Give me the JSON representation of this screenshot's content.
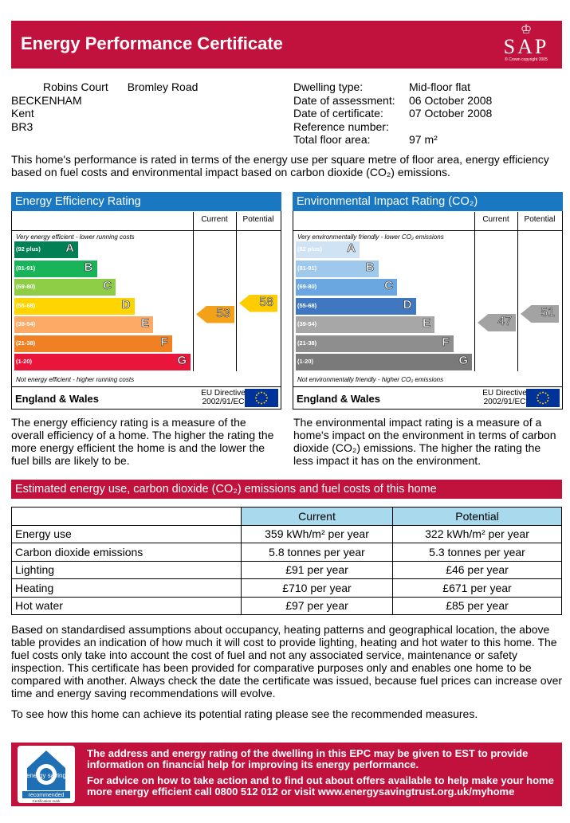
{
  "header": {
    "title": "Energy Performance Certificate",
    "logo_text": "SAP",
    "logo_copyright": "© Crown copyright 2005"
  },
  "address": {
    "line1a": "Robins Court",
    "line1b": "Bromley Road",
    "line2": "BECKENHAM",
    "line3": "Kent",
    "line4": "BR3"
  },
  "details": [
    {
      "label": "Dwelling type:",
      "value": "Mid-floor flat"
    },
    {
      "label": "Date of assessment:",
      "value": "06 October 2008"
    },
    {
      "label": "Date of certificate:",
      "value": "07 October 2008"
    },
    {
      "label": "Reference number:",
      "value": ""
    },
    {
      "label": "Total floor area:",
      "value": "97 m²"
    }
  ],
  "intro": "This home's performance is rated in terms of the energy use per square metre of floor area, energy efficiency based on fuel costs and environmental impact based on carbon dioxide (CO₂) emissions.",
  "energy_rating": {
    "title": "Energy Efficiency Rating",
    "col_current": "Current",
    "col_potential": "Potential",
    "top_text": "Very energy efficient - lower running costs",
    "bottom_text": "Not energy efficient - higher running costs",
    "bands": [
      {
        "range": "(92 plus)",
        "letter": "A",
        "color": "#008054"
      },
      {
        "range": "(81-91)",
        "letter": "B",
        "color": "#19b459"
      },
      {
        "range": "(69-80)",
        "letter": "C",
        "color": "#8dce46"
      },
      {
        "range": "(55-68)",
        "letter": "D",
        "color": "#ffd500"
      },
      {
        "range": "(39-54)",
        "letter": "E",
        "color": "#fcaa65"
      },
      {
        "range": "(21-38)",
        "letter": "F",
        "color": "#ef8023"
      },
      {
        "range": "(1-20)",
        "letter": "G",
        "color": "#e9153b"
      }
    ],
    "current": "53",
    "current_color": "#f4a11a",
    "potential": "58",
    "potential_color": "#ffcc00",
    "footer_region": "England & Wales",
    "footer_directive": "EU Directive 2002/91/EC"
  },
  "env_rating": {
    "title": "Environmental Impact Rating (CO₂)",
    "col_current": "Current",
    "col_potential": "Potential",
    "top_text": "Very environmentally friendly - lower CO₂ emissions",
    "bottom_text": "Not environmentally friendly - higher CO₂ emissions",
    "bands": [
      {
        "range": "(92 plus)",
        "letter": "A",
        "color": "#cfe3f5"
      },
      {
        "range": "(81-91)",
        "letter": "B",
        "color": "#9ec8ec"
      },
      {
        "range": "(69-80)",
        "letter": "C",
        "color": "#6aa6df"
      },
      {
        "range": "(55-68)",
        "letter": "D",
        "color": "#3f78c1"
      },
      {
        "range": "(39-54)",
        "letter": "E",
        "color": "#a7a7a7"
      },
      {
        "range": "(21-38)",
        "letter": "F",
        "color": "#8e8e8e"
      },
      {
        "range": "(1-20)",
        "letter": "G",
        "color": "#7a7a7a"
      }
    ],
    "current": "47",
    "current_color": "#a3a3a3",
    "potential": "51",
    "potential_color": "#a3a3a3",
    "footer_region": "England & Wales",
    "footer_directive": "EU Directive 2002/91/EC"
  },
  "energy_desc": "The energy efficiency rating is a measure of the overall efficiency of a home. The higher the rating the more energy efficient the home is and the lower the fuel bills are likely to be.",
  "env_desc": "The environmental impact rating is a measure of a home's impact on the environment in terms of carbon dioxide (CO₂) emissions. The higher the rating the less impact it has on the environment.",
  "estimate": {
    "title": "Estimated energy use, carbon dioxide (CO₂) emissions and fuel costs of this home",
    "col_current": "Current",
    "col_potential": "Potential",
    "rows": [
      {
        "label": "Energy use",
        "current": "359 kWh/m² per year",
        "potential": "322 kWh/m² per year"
      },
      {
        "label": "Carbon dioxide emissions",
        "current": "5.8 tonnes per year",
        "potential": "5.3 tonnes per year"
      },
      {
        "label": "Lighting",
        "current": "£91 per year",
        "potential": "£46 per year"
      },
      {
        "label": "Heating",
        "current": "£710 per year",
        "potential": "£671 per year"
      },
      {
        "label": "Hot water",
        "current": "£97 per year",
        "potential": "£85 per year"
      }
    ]
  },
  "paragraph": "Based on standardised assumptions about occupancy, heating patterns and geographical location, the above table provides an indication of how much it will cost to provide lighting, heating and hot water to this home. The fuel costs only take into account the cost of fuel and not any associated service, maintenance or safety inspection. This certificate has been provided for comparative purposes only and enables one home to be compared with another. Always check the date the certificate was issued, because fuel prices can increase over time and energy saving recommendations will evolve.",
  "paragraph2": "To see how this home can achieve its potential rating please see the recommended measures.",
  "footer": {
    "text1": "The address and energy rating of the dwelling in this EPC may be given to EST to provide information on financial help for improving its energy performance.",
    "text2": "For advice on how to take action and to find out about offers available to help make your home more energy efficient call 0800 512 012 or visit www.energysavingtrust.org.uk/myhome",
    "logo_line1": "energy saving",
    "logo_line2": "recommended",
    "logo_line3": "Certification mark"
  }
}
